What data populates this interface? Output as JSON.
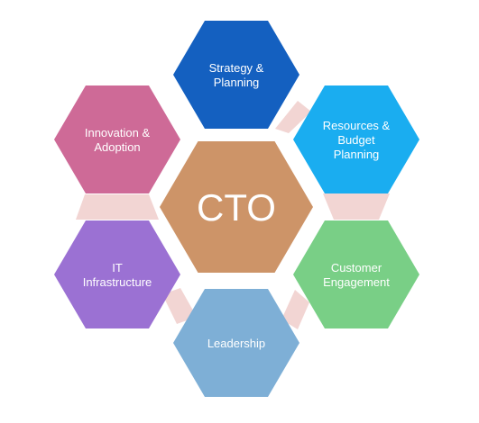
{
  "center": {
    "label": "CTO",
    "color": "#CD9468"
  },
  "nodes": [
    {
      "id": "strategy",
      "lines": [
        "Strategy &",
        "Planning"
      ],
      "color": "#1460C0"
    },
    {
      "id": "resources",
      "lines": [
        "Resources &",
        "Budget",
        "Planning"
      ],
      "color": "#1AADF0"
    },
    {
      "id": "customer",
      "lines": [
        "Customer",
        "Engagement"
      ],
      "color": "#79CF86"
    },
    {
      "id": "leadership",
      "lines": [
        "Leadership"
      ],
      "color": "#7EAFD6"
    },
    {
      "id": "it",
      "lines": [
        "IT",
        "Infrastructure"
      ],
      "color": "#9B71D3"
    },
    {
      "id": "innovation",
      "lines": [
        "Innovation &",
        "Adoption"
      ],
      "color": "#CE6A97"
    }
  ],
  "connector_color": "#F2D5D3"
}
